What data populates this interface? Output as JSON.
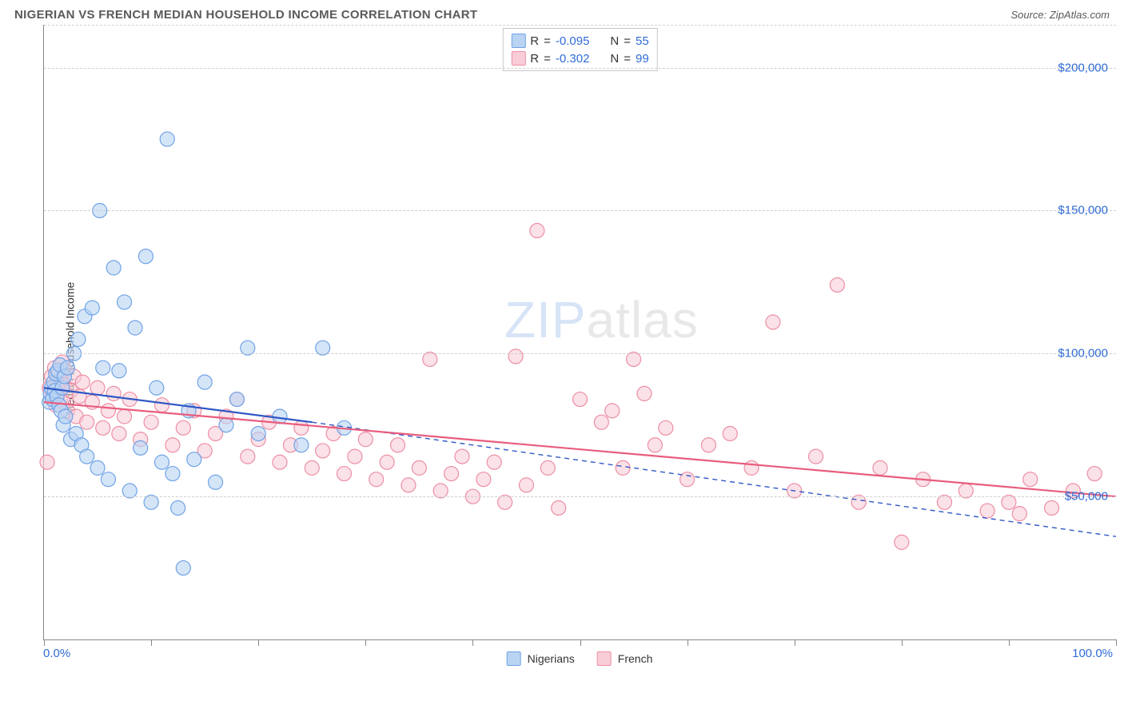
{
  "header": {
    "title": "NIGERIAN VS FRENCH MEDIAN HOUSEHOLD INCOME CORRELATION CHART",
    "source": "Source: ZipAtlas.com"
  },
  "watermark": {
    "part1": "ZIP",
    "part2": "atlas"
  },
  "chart": {
    "type": "scatter",
    "y_axis_label": "Median Household Income",
    "background_color": "#ffffff",
    "grid_color": "#cfcfcf",
    "axis_color": "#888888",
    "text_color": "#333333",
    "value_color": "#2f6bd6",
    "xlim": [
      0,
      100
    ],
    "ylim": [
      0,
      215000
    ],
    "x_tick_positions": [
      0,
      10,
      20,
      30,
      40,
      50,
      60,
      70,
      80,
      90,
      100
    ],
    "x_tick_labels_min": "0.0%",
    "x_tick_labels_max": "100.0%",
    "y_gridlines": [
      50000,
      100000,
      150000,
      200000,
      215000
    ],
    "y_tick_labels": {
      "50000": "$50,000",
      "100000": "$100,000",
      "150000": "$150,000",
      "200000": "$200,000"
    },
    "marker_radius": 9,
    "marker_stroke_width": 1.2,
    "line_width_solid": 2.2,
    "line_width_dashed": 1.4,
    "series": [
      {
        "id": "nigerians",
        "label": "Nigerians",
        "fill_color": "#b9d3f3",
        "stroke_color": "#6fa3e6",
        "line_color": "#2f58c6",
        "R": "-0.095",
        "N": "55",
        "regression": {
          "x1": 0,
          "y1": 88000,
          "x2": 25,
          "y2": 76000,
          "dashed_to_x": 100,
          "dashed_to_y": 36000
        },
        "points": [
          [
            0.5,
            83000
          ],
          [
            0.6,
            86000
          ],
          [
            0.7,
            88000
          ],
          [
            0.8,
            84000
          ],
          [
            0.9,
            90000
          ],
          [
            1.0,
            87000
          ],
          [
            1.1,
            93000
          ],
          [
            1.2,
            85000
          ],
          [
            1.3,
            94000
          ],
          [
            1.4,
            82000
          ],
          [
            1.5,
            96000
          ],
          [
            1.6,
            80000
          ],
          [
            1.7,
            88000
          ],
          [
            1.8,
            75000
          ],
          [
            1.9,
            92000
          ],
          [
            2.0,
            78000
          ],
          [
            2.2,
            95000
          ],
          [
            2.5,
            70000
          ],
          [
            2.8,
            100000
          ],
          [
            3.0,
            72000
          ],
          [
            3.2,
            105000
          ],
          [
            3.5,
            68000
          ],
          [
            3.8,
            113000
          ],
          [
            4.0,
            64000
          ],
          [
            4.5,
            116000
          ],
          [
            5.0,
            60000
          ],
          [
            5.2,
            150000
          ],
          [
            5.5,
            95000
          ],
          [
            6.0,
            56000
          ],
          [
            6.5,
            130000
          ],
          [
            7.0,
            94000
          ],
          [
            7.5,
            118000
          ],
          [
            8.0,
            52000
          ],
          [
            8.5,
            109000
          ],
          [
            9.0,
            67000
          ],
          [
            9.5,
            134000
          ],
          [
            10.0,
            48000
          ],
          [
            10.5,
            88000
          ],
          [
            11.0,
            62000
          ],
          [
            11.5,
            175000
          ],
          [
            12.0,
            58000
          ],
          [
            12.5,
            46000
          ],
          [
            13.0,
            25000
          ],
          [
            13.5,
            80000
          ],
          [
            14.0,
            63000
          ],
          [
            15.0,
            90000
          ],
          [
            16.0,
            55000
          ],
          [
            17.0,
            75000
          ],
          [
            18.0,
            84000
          ],
          [
            19.0,
            102000
          ],
          [
            20.0,
            72000
          ],
          [
            22.0,
            78000
          ],
          [
            24.0,
            68000
          ],
          [
            26.0,
            102000
          ],
          [
            28.0,
            74000
          ]
        ]
      },
      {
        "id": "french",
        "label": "French",
        "fill_color": "#f9cdd8",
        "stroke_color": "#ec8fa4",
        "line_color": "#e85d7d",
        "R": "-0.302",
        "N": "99",
        "regression": {
          "x1": 0,
          "y1": 83000,
          "x2": 100,
          "y2": 50000
        },
        "points": [
          [
            0.3,
            62000
          ],
          [
            0.5,
            88000
          ],
          [
            0.7,
            92000
          ],
          [
            0.8,
            85000
          ],
          [
            1.0,
            95000
          ],
          [
            1.1,
            82000
          ],
          [
            1.2,
            90000
          ],
          [
            1.3,
            86000
          ],
          [
            1.4,
            93000
          ],
          [
            1.5,
            84000
          ],
          [
            1.6,
            91000
          ],
          [
            1.7,
            97000
          ],
          [
            1.8,
            83000
          ],
          [
            1.9,
            89000
          ],
          [
            2.0,
            94000
          ],
          [
            2.2,
            80000
          ],
          [
            2.5,
            87000
          ],
          [
            2.8,
            92000
          ],
          [
            3.0,
            78000
          ],
          [
            3.3,
            85000
          ],
          [
            3.6,
            90000
          ],
          [
            4.0,
            76000
          ],
          [
            4.5,
            83000
          ],
          [
            5.0,
            88000
          ],
          [
            5.5,
            74000
          ],
          [
            6.0,
            80000
          ],
          [
            6.5,
            86000
          ],
          [
            7.0,
            72000
          ],
          [
            7.5,
            78000
          ],
          [
            8.0,
            84000
          ],
          [
            9.0,
            70000
          ],
          [
            10.0,
            76000
          ],
          [
            11.0,
            82000
          ],
          [
            12.0,
            68000
          ],
          [
            13.0,
            74000
          ],
          [
            14.0,
            80000
          ],
          [
            15.0,
            66000
          ],
          [
            16.0,
            72000
          ],
          [
            17.0,
            78000
          ],
          [
            18.0,
            84000
          ],
          [
            19.0,
            64000
          ],
          [
            20.0,
            70000
          ],
          [
            21.0,
            76000
          ],
          [
            22.0,
            62000
          ],
          [
            23.0,
            68000
          ],
          [
            24.0,
            74000
          ],
          [
            25.0,
            60000
          ],
          [
            26.0,
            66000
          ],
          [
            27.0,
            72000
          ],
          [
            28.0,
            58000
          ],
          [
            29.0,
            64000
          ],
          [
            30.0,
            70000
          ],
          [
            31.0,
            56000
          ],
          [
            32.0,
            62000
          ],
          [
            33.0,
            68000
          ],
          [
            34.0,
            54000
          ],
          [
            35.0,
            60000
          ],
          [
            36.0,
            98000
          ],
          [
            37.0,
            52000
          ],
          [
            38.0,
            58000
          ],
          [
            39.0,
            64000
          ],
          [
            40.0,
            50000
          ],
          [
            41.0,
            56000
          ],
          [
            42.0,
            62000
          ],
          [
            43.0,
            48000
          ],
          [
            44.0,
            99000
          ],
          [
            45.0,
            54000
          ],
          [
            46.0,
            143000
          ],
          [
            47.0,
            60000
          ],
          [
            48.0,
            46000
          ],
          [
            50.0,
            84000
          ],
          [
            52.0,
            76000
          ],
          [
            53.0,
            80000
          ],
          [
            54.0,
            60000
          ],
          [
            55.0,
            98000
          ],
          [
            56.0,
            86000
          ],
          [
            57.0,
            68000
          ],
          [
            58.0,
            74000
          ],
          [
            60.0,
            56000
          ],
          [
            62.0,
            68000
          ],
          [
            64.0,
            72000
          ],
          [
            66.0,
            60000
          ],
          [
            68.0,
            111000
          ],
          [
            70.0,
            52000
          ],
          [
            72.0,
            64000
          ],
          [
            74.0,
            124000
          ],
          [
            76.0,
            48000
          ],
          [
            78.0,
            60000
          ],
          [
            80.0,
            34000
          ],
          [
            82.0,
            56000
          ],
          [
            84.0,
            48000
          ],
          [
            86.0,
            52000
          ],
          [
            88.0,
            45000
          ],
          [
            90.0,
            48000
          ],
          [
            91.0,
            44000
          ],
          [
            92.0,
            56000
          ],
          [
            94.0,
            46000
          ],
          [
            96.0,
            52000
          ],
          [
            98.0,
            58000
          ]
        ]
      }
    ]
  },
  "legend": {
    "bottom": [
      {
        "label": "Nigerians",
        "fill": "#b9d3f3",
        "stroke": "#6fa3e6"
      },
      {
        "label": "French",
        "fill": "#f9cdd8",
        "stroke": "#ec8fa4"
      }
    ]
  }
}
